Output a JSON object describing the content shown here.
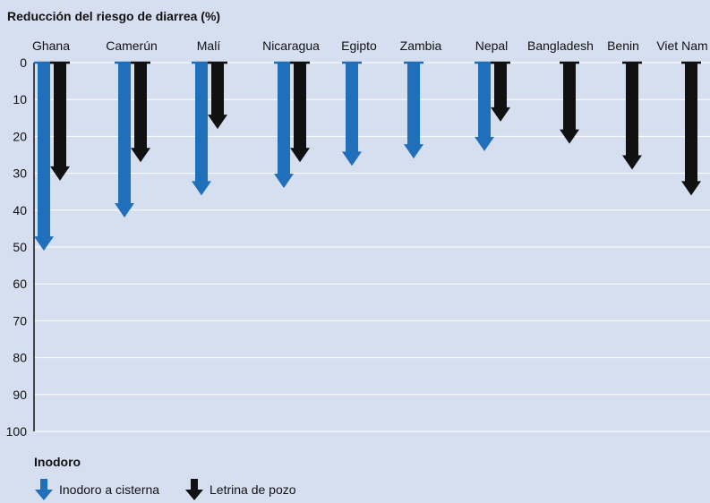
{
  "chart_data": {
    "type": "bar",
    "title": "Reducción del riesgo de diarrea (%)",
    "categories": [
      "Ghana",
      "Camerún",
      "Malí",
      "Nicaragua",
      "Egipto",
      "Zambia",
      "Nepal",
      "Bangladesh",
      "Benin",
      "Viet Nam"
    ],
    "series": [
      {
        "name": "Inodoro a cisterna",
        "color": "#1f6fba",
        "values": [
          51,
          42,
          36,
          34,
          28,
          26,
          24,
          null,
          null,
          null
        ]
      },
      {
        "name": "Letrina de pozo",
        "color": "#111111",
        "values": [
          32,
          27,
          18,
          27,
          null,
          null,
          16,
          22,
          29,
          36
        ]
      }
    ],
    "ylim": [
      0,
      100
    ],
    "y_inverted": true,
    "yticks": [
      "0",
      "10",
      "20",
      "30",
      "40",
      "50",
      "60",
      "70",
      "80",
      "90",
      "100"
    ],
    "grid": true,
    "legend_title": "Inodoro",
    "legend_position": "bottom-left"
  }
}
